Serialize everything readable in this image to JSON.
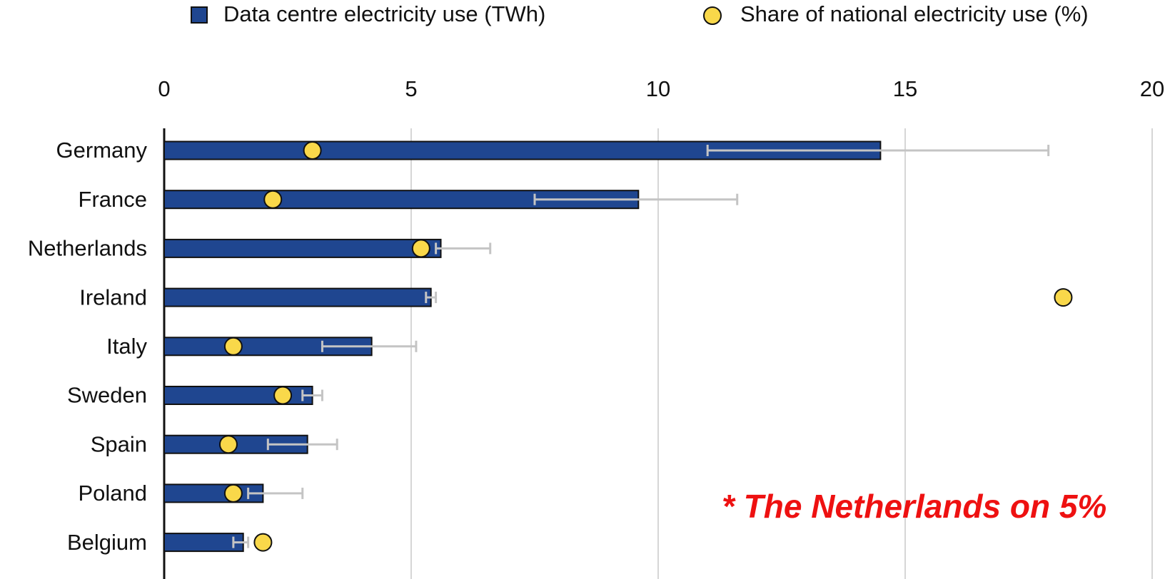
{
  "chart_data": {
    "type": "bar",
    "orientation": "horizontal",
    "categories": [
      "Germany",
      "France",
      "Netherlands",
      "Ireland",
      "Italy",
      "Sweden",
      "Spain",
      "Poland",
      "Belgium"
    ],
    "series": [
      {
        "name": "Data centre electricity use (TWh)",
        "color": "#1f4690",
        "values": [
          14.5,
          9.6,
          5.6,
          5.4,
          4.2,
          3.0,
          2.9,
          2.0,
          1.6
        ],
        "error_low": [
          11.0,
          7.5,
          5.5,
          5.3,
          3.2,
          2.8,
          2.1,
          1.7,
          1.4
        ],
        "error_high": [
          17.9,
          11.6,
          6.6,
          5.5,
          5.1,
          3.2,
          3.5,
          2.8,
          1.7
        ]
      },
      {
        "name": "Share of national electricity use (%)",
        "type": "scatter",
        "color": "#f9d84a",
        "values": [
          3.0,
          2.2,
          5.2,
          18.2,
          1.4,
          2.4,
          1.3,
          1.4,
          2.0
        ]
      }
    ],
    "xlim": [
      0,
      20
    ],
    "xticks": [
      0,
      5,
      10,
      15,
      20
    ],
    "grid": true,
    "annotation": "* The Netherlands on 5%"
  }
}
